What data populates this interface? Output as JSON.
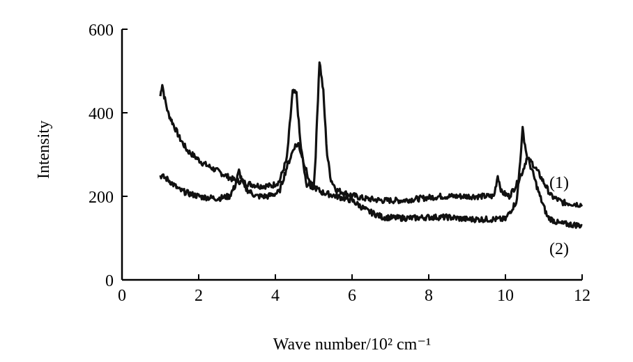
{
  "chart_data": {
    "type": "line",
    "title": "",
    "xlabel": "Wave number/10² cm⁻¹",
    "ylabel": "Intensity",
    "xlim": [
      0,
      12
    ],
    "ylim": [
      0,
      600
    ],
    "xticks": [
      0,
      2,
      4,
      6,
      8,
      10,
      12
    ],
    "yticks": [
      0,
      200,
      400,
      600
    ],
    "grid": false,
    "legend": "inline labels at right",
    "series": [
      {
        "name": "(1)",
        "color": "#111111",
        "x": [
          1.0,
          1.05,
          1.1,
          1.2,
          1.35,
          1.5,
          1.7,
          1.9,
          2.1,
          2.4,
          2.7,
          2.9,
          3.1,
          3.3,
          3.6,
          3.9,
          4.1,
          4.3,
          4.45,
          4.55,
          4.65,
          4.8,
          5.0,
          5.05,
          5.15,
          5.25,
          5.35,
          5.45,
          5.6,
          5.9,
          6.3,
          6.8,
          7.3,
          7.8,
          8.3,
          8.8,
          9.3,
          9.7,
          9.8,
          9.9,
          10.1,
          10.3,
          10.45,
          10.55,
          10.7,
          10.9,
          11.2,
          11.5,
          12.0
        ],
        "y": [
          440,
          470,
          440,
          400,
          370,
          340,
          310,
          295,
          280,
          265,
          250,
          240,
          235,
          230,
          225,
          225,
          235,
          290,
          450,
          445,
          330,
          230,
          220,
          300,
          525,
          450,
          300,
          240,
          215,
          205,
          195,
          190,
          190,
          195,
          200,
          200,
          200,
          200,
          250,
          210,
          200,
          230,
          260,
          290,
          280,
          250,
          200,
          185,
          180
        ]
      },
      {
        "name": "(2)",
        "color": "#111111",
        "x": [
          1.0,
          1.2,
          1.5,
          1.8,
          2.1,
          2.5,
          2.8,
          2.95,
          3.05,
          3.2,
          3.5,
          3.8,
          4.1,
          4.3,
          4.5,
          4.6,
          4.75,
          4.9,
          5.2,
          5.6,
          6.0,
          6.4,
          6.8,
          7.2,
          7.6,
          8.0,
          8.5,
          9.0,
          9.5,
          10.0,
          10.3,
          10.45,
          10.55,
          10.7,
          10.9,
          11.1,
          11.4,
          12.0
        ],
        "y": [
          250,
          240,
          215,
          205,
          198,
          195,
          200,
          225,
          260,
          220,
          200,
          200,
          210,
          270,
          320,
          325,
          280,
          230,
          210,
          200,
          190,
          165,
          150,
          148,
          148,
          150,
          150,
          145,
          145,
          145,
          190,
          360,
          300,
          260,
          200,
          150,
          135,
          130
        ]
      }
    ]
  }
}
